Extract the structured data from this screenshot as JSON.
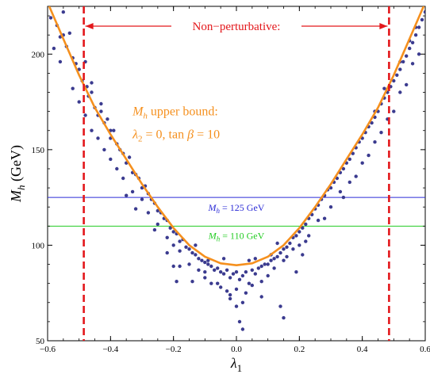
{
  "chart_data": {
    "type": "scatter",
    "xlabel_main": "λ",
    "xlabel_sub": "1",
    "ylabel_main": "M",
    "ylabel_sub": "h",
    "ylabel_unit": " (GeV)",
    "xlim": [
      -0.6,
      0.6
    ],
    "ylim": [
      50,
      225
    ],
    "x_ticks": [
      -0.6,
      -0.4,
      -0.2,
      0.0,
      0.2,
      0.4,
      0.6
    ],
    "x_tick_labels": [
      "−0.6",
      "−0.4",
      "−0.2",
      "0.0",
      "0.2",
      "0.4",
      "0.6"
    ],
    "y_ticks": [
      50,
      100,
      150,
      200
    ],
    "y_tick_labels": [
      "50",
      "100",
      "150",
      "200"
    ],
    "colors": {
      "points": "#3b3b8f",
      "curve": "#f5901e",
      "bound": "#e3171b",
      "line125": "#2b2bd6",
      "line110": "#22cc22"
    },
    "upper_bound_curve": {
      "x": [
        -0.6,
        -0.55,
        -0.5,
        -0.45,
        -0.4,
        -0.35,
        -0.3,
        -0.25,
        -0.2,
        -0.15,
        -0.1,
        -0.05,
        0.0,
        0.05,
        0.1,
        0.15,
        0.2,
        0.25,
        0.3,
        0.35,
        0.4,
        0.45,
        0.5,
        0.55,
        0.6
      ],
      "y": [
        227,
        208,
        189,
        172,
        158,
        145,
        132,
        120,
        109,
        100,
        94,
        90.5,
        89.5,
        90.5,
        94,
        100,
        109,
        120,
        132,
        145,
        158,
        172,
        189,
        208,
        227
      ]
    },
    "nonperturbative_bounds": [
      -0.485,
      0.485
    ],
    "nonperturbative_label": "Non−perturbative:",
    "horizontal_lines": [
      {
        "y": 125,
        "label_main": "M",
        "label_sub": "h",
        "label_rest": " = 125 GeV"
      },
      {
        "y": 110,
        "label_main": "M",
        "label_sub": "h",
        "label_rest": " = 110 GeV"
      }
    ],
    "curve_annotation": {
      "line1_main": "M",
      "line1_sub": "h",
      "line1_rest": " upper bound:",
      "line2_lambda": "λ",
      "line2_sub": "2",
      "line2_rest1": " = 0, tan ",
      "line2_beta": "β",
      "line2_rest2": " = 10"
    },
    "points": [
      [
        -0.59,
        219
      ],
      [
        -0.58,
        203
      ],
      [
        -0.57,
        215
      ],
      [
        -0.56,
        209
      ],
      [
        -0.55,
        222
      ],
      [
        -0.54,
        204
      ],
      [
        -0.53,
        211
      ],
      [
        -0.52,
        198
      ],
      [
        -0.51,
        195
      ],
      [
        -0.5,
        192
      ],
      [
        -0.49,
        186
      ],
      [
        -0.48,
        196
      ],
      [
        -0.475,
        183
      ],
      [
        -0.47,
        178
      ],
      [
        -0.46,
        180
      ],
      [
        -0.45,
        172
      ],
      [
        -0.44,
        168
      ],
      [
        -0.43,
        170
      ],
      [
        -0.42,
        164
      ],
      [
        -0.41,
        166
      ],
      [
        -0.4,
        156
      ],
      [
        -0.39,
        160
      ],
      [
        -0.38,
        153
      ],
      [
        -0.37,
        150
      ],
      [
        -0.36,
        148
      ],
      [
        -0.35,
        143
      ],
      [
        -0.34,
        146
      ],
      [
        -0.33,
        138
      ],
      [
        -0.32,
        137
      ],
      [
        -0.31,
        135
      ],
      [
        -0.3,
        130
      ],
      [
        -0.29,
        131
      ],
      [
        -0.28,
        127
      ],
      [
        -0.27,
        124
      ],
      [
        -0.26,
        122
      ],
      [
        -0.25,
        118
      ],
      [
        -0.24,
        117
      ],
      [
        -0.23,
        114
      ],
      [
        -0.22,
        113
      ],
      [
        -0.21,
        109
      ],
      [
        -0.2,
        107
      ],
      [
        -0.19,
        106
      ],
      [
        -0.18,
        102
      ],
      [
        -0.17,
        103
      ],
      [
        -0.16,
        99
      ],
      [
        -0.15,
        98
      ],
      [
        -0.14,
        96
      ],
      [
        -0.13,
        95
      ],
      [
        -0.12,
        93
      ],
      [
        -0.11,
        92
      ],
      [
        -0.1,
        91
      ],
      [
        -0.09,
        90
      ],
      [
        -0.08,
        89
      ],
      [
        -0.07,
        87
      ],
      [
        -0.06,
        88
      ],
      [
        -0.05,
        86
      ],
      [
        -0.04,
        85
      ],
      [
        -0.03,
        87
      ],
      [
        -0.02,
        83
      ],
      [
        -0.01,
        85
      ],
      [
        0.0,
        86
      ],
      [
        0.01,
        82
      ],
      [
        0.02,
        84
      ],
      [
        0.03,
        86
      ],
      [
        0.04,
        80
      ],
      [
        0.05,
        87
      ],
      [
        0.06,
        85
      ],
      [
        0.07,
        88
      ],
      [
        0.08,
        89
      ],
      [
        0.09,
        90
      ],
      [
        0.1,
        90
      ],
      [
        0.11,
        92
      ],
      [
        0.12,
        93
      ],
      [
        0.13,
        94
      ],
      [
        0.14,
        96
      ],
      [
        0.15,
        98
      ],
      [
        0.16,
        99
      ],
      [
        0.17,
        101
      ],
      [
        0.18,
        104
      ],
      [
        0.19,
        105
      ],
      [
        0.2,
        107
      ],
      [
        0.21,
        109
      ],
      [
        0.22,
        111
      ],
      [
        0.23,
        114
      ],
      [
        0.24,
        116
      ],
      [
        0.25,
        119
      ],
      [
        0.26,
        121
      ],
      [
        0.27,
        124
      ],
      [
        0.28,
        126
      ],
      [
        0.29,
        129
      ],
      [
        0.3,
        130
      ],
      [
        0.31,
        133
      ],
      [
        0.32,
        135
      ],
      [
        0.33,
        138
      ],
      [
        0.34,
        140
      ],
      [
        0.35,
        143
      ],
      [
        0.36,
        145
      ],
      [
        0.37,
        148
      ],
      [
        0.38,
        151
      ],
      [
        0.39,
        154
      ],
      [
        0.4,
        156
      ],
      [
        0.41,
        159
      ],
      [
        0.42,
        162
      ],
      [
        0.43,
        164
      ],
      [
        0.44,
        167
      ],
      [
        0.45,
        170
      ],
      [
        0.46,
        174
      ],
      [
        0.47,
        177
      ],
      [
        0.48,
        180
      ],
      [
        0.49,
        183
      ],
      [
        0.5,
        186
      ],
      [
        0.51,
        189
      ],
      [
        0.52,
        192
      ],
      [
        0.53,
        196
      ],
      [
        0.54,
        199
      ],
      [
        0.55,
        203
      ],
      [
        0.56,
        206
      ],
      [
        0.57,
        210
      ],
      [
        0.58,
        214
      ],
      [
        0.59,
        218
      ],
      [
        -0.3,
        124
      ],
      [
        -0.25,
        111
      ],
      [
        -0.2,
        100
      ],
      [
        -0.15,
        90
      ],
      [
        -0.12,
        87
      ],
      [
        -0.1,
        83
      ],
      [
        -0.08,
        80
      ],
      [
        -0.05,
        78
      ],
      [
        -0.03,
        76
      ],
      [
        0.0,
        77
      ],
      [
        0.03,
        75
      ],
      [
        0.05,
        79
      ],
      [
        0.08,
        81
      ],
      [
        0.1,
        84
      ],
      [
        0.12,
        88
      ],
      [
        0.15,
        92
      ],
      [
        0.18,
        98
      ],
      [
        0.2,
        100
      ],
      [
        0.23,
        105
      ],
      [
        0.26,
        113
      ],
      [
        0.3,
        120
      ],
      [
        0.33,
        128
      ],
      [
        0.36,
        133
      ],
      [
        0.4,
        143
      ],
      [
        0.44,
        154
      ],
      [
        0.48,
        166
      ],
      [
        0.52,
        180
      ],
      [
        0.56,
        195
      ],
      [
        -0.56,
        196
      ],
      [
        -0.52,
        182
      ],
      [
        -0.48,
        168
      ],
      [
        -0.44,
        156
      ],
      [
        -0.4,
        145
      ],
      [
        -0.36,
        135
      ],
      [
        -0.33,
        128
      ],
      [
        -0.28,
        117
      ],
      [
        -0.22,
        104
      ],
      [
        -0.18,
        97
      ],
      [
        -0.06,
        80
      ],
      [
        -0.02,
        74
      ],
      [
        -0.14,
        81
      ],
      [
        -0.1,
        86
      ],
      [
        -0.18,
        89
      ],
      [
        -0.22,
        96
      ],
      [
        -0.26,
        108
      ],
      [
        -0.32,
        119
      ],
      [
        -0.38,
        140
      ],
      [
        -0.42,
        150
      ],
      [
        -0.46,
        160
      ],
      [
        -0.5,
        175
      ],
      [
        0.16,
        94
      ],
      [
        0.22,
        102
      ],
      [
        0.28,
        114
      ],
      [
        0.34,
        125
      ],
      [
        0.38,
        136
      ],
      [
        0.42,
        147
      ],
      [
        0.46,
        159
      ],
      [
        0.5,
        170
      ],
      [
        0.54,
        184
      ],
      [
        0.58,
        200
      ],
      [
        -0.35,
        126
      ],
      [
        -0.2,
        89
      ],
      [
        0.0,
        68
      ],
      [
        -0.02,
        72
      ],
      [
        0.02,
        70
      ],
      [
        0.14,
        68
      ],
      [
        0.15,
        62
      ],
      [
        0.01,
        60
      ],
      [
        0.02,
        56
      ],
      [
        0.08,
        73
      ],
      [
        -0.19,
        81
      ],
      [
        0.19,
        86
      ],
      [
        0.21,
        95
      ],
      [
        -0.09,
        92
      ],
      [
        -0.04,
        93
      ],
      [
        0.04,
        92
      ],
      [
        0.06,
        93
      ],
      [
        0.11,
        95
      ],
      [
        -0.13,
        100
      ],
      [
        0.13,
        101
      ],
      [
        -0.4,
        160
      ],
      [
        -0.43,
        174
      ],
      [
        -0.46,
        185
      ],
      [
        -0.55,
        210
      ],
      [
        0.44,
        170
      ],
      [
        0.47,
        182
      ],
      [
        0.52,
        196
      ],
      [
        0.55,
        207
      ],
      [
        0.57,
        214
      ],
      [
        0.6,
        222
      ]
    ]
  }
}
